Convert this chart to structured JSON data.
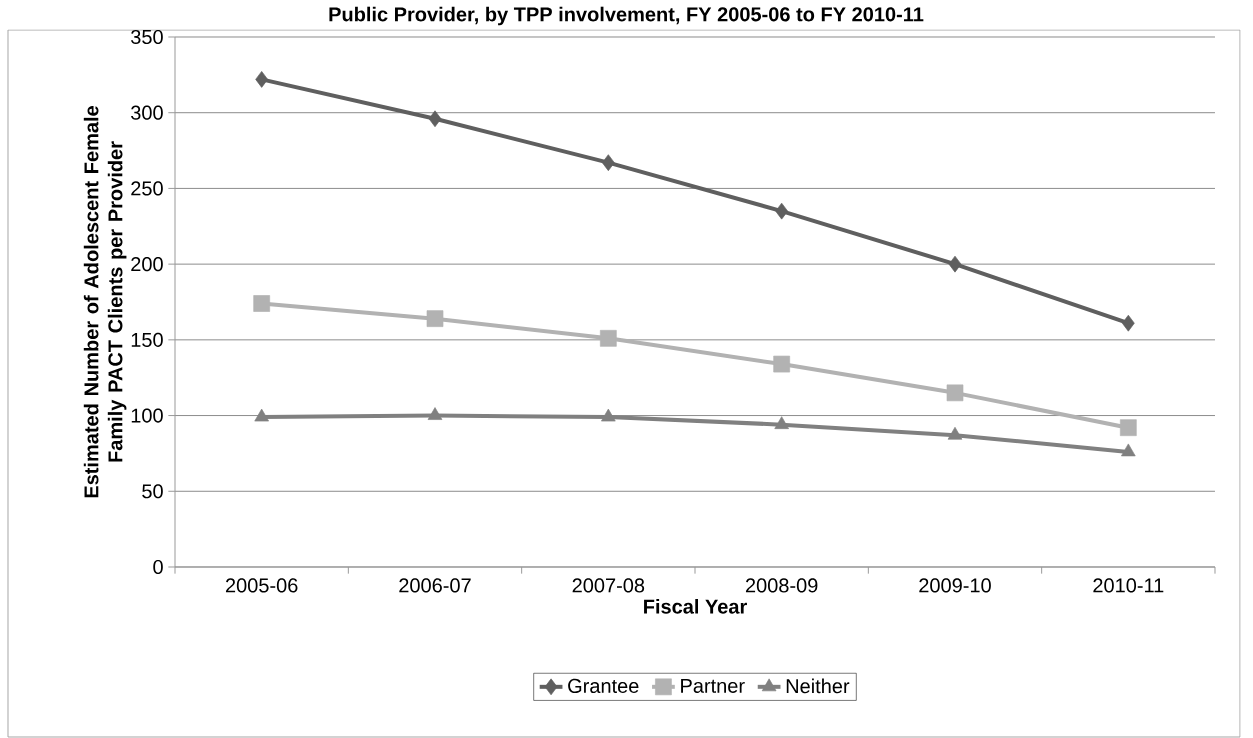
{
  "chart_data": {
    "type": "line",
    "title": "Public Provider, by TPP involvement, FY 2005-06 to FY 2010-11",
    "xlabel": "Fiscal Year",
    "ylabel": "Estimated Number of Adolescent Female Family PACT Clients per Provider",
    "categories": [
      "2005-06",
      "2006-07",
      "2007-08",
      "2008-09",
      "2009-10",
      "2010-11"
    ],
    "series": [
      {
        "name": "Grantee",
        "color": "#5f5f5f",
        "marker": "diamond",
        "values": [
          322,
          296,
          267,
          235,
          200,
          161
        ]
      },
      {
        "name": "Partner",
        "color": "#b2b2b2",
        "marker": "square",
        "values": [
          174,
          164,
          151,
          134,
          115,
          92
        ]
      },
      {
        "name": "Neither",
        "color": "#808080",
        "marker": "triangle",
        "values": [
          99,
          100,
          99,
          94,
          87,
          76
        ]
      }
    ],
    "ylim": [
      0,
      350
    ],
    "yticks": [
      0,
      50,
      100,
      150,
      200,
      250,
      300,
      350
    ],
    "grid": "y",
    "legend": "bottom",
    "line_style": "solid"
  }
}
